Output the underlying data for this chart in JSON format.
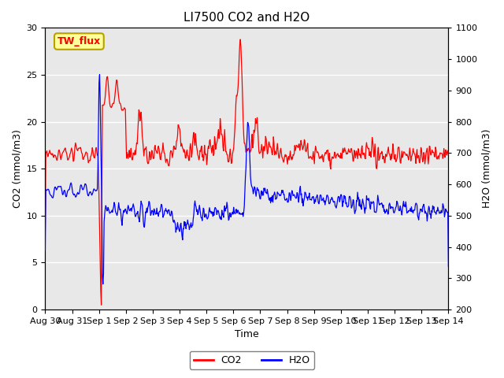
{
  "title": "LI7500 CO2 and H2O",
  "xlabel": "Time",
  "ylabel_left": "CO2 (mmol/m3)",
  "ylabel_right": "H2O (mmol/m3)",
  "ylim_left": [
    0,
    30
  ],
  "ylim_right": [
    200,
    1100
  ],
  "yticks_left": [
    0,
    5,
    10,
    15,
    20,
    25,
    30
  ],
  "yticks_right": [
    200,
    300,
    400,
    500,
    600,
    700,
    800,
    900,
    1000,
    1100
  ],
  "xtick_labels": [
    "Aug 30",
    "Aug 31",
    "Sep 1",
    "Sep 2",
    "Sep 3",
    "Sep 4",
    "Sep 5",
    "Sep 6",
    "Sep 7",
    "Sep 8",
    "Sep 9",
    "Sep 10",
    "Sep 11",
    "Sep 12",
    "Sep 13",
    "Sep 14"
  ],
  "co2_color": "#ff0000",
  "h2o_color": "#0000ff",
  "plot_bg_color": "#e8e8e8",
  "legend_box_color": "#ffff99",
  "legend_box_edge_color": "#b8a000",
  "legend_box_label": "TW_flux",
  "title_fontsize": 11,
  "axis_label_fontsize": 9,
  "tick_fontsize": 8,
  "legend_fontsize": 9,
  "linewidth": 0.9
}
